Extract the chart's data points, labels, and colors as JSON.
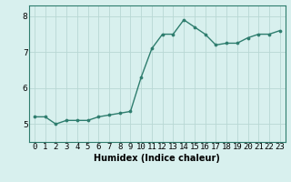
{
  "x": [
    0,
    1,
    2,
    3,
    4,
    5,
    6,
    7,
    8,
    9,
    10,
    11,
    12,
    13,
    14,
    15,
    16,
    17,
    18,
    19,
    20,
    21,
    22,
    23
  ],
  "y": [
    5.2,
    5.2,
    5.0,
    5.1,
    5.1,
    5.1,
    5.2,
    5.25,
    5.3,
    5.35,
    6.3,
    7.1,
    7.5,
    7.5,
    7.9,
    7.7,
    7.5,
    7.2,
    7.25,
    7.25,
    7.4,
    7.5,
    7.5,
    7.6
  ],
  "line_color": "#2e7d6e",
  "marker": "o",
  "marker_size": 2.2,
  "line_width": 1.0,
  "bg_color": "#d8f0ee",
  "grid_color": "#b8d8d4",
  "xlabel": "Humidex (Indice chaleur)",
  "ylim": [
    4.5,
    8.3
  ],
  "yticks": [
    5,
    6,
    7,
    8
  ],
  "xtick_labels": [
    "0",
    "1",
    "2",
    "3",
    "4",
    "5",
    "6",
    "7",
    "8",
    "9",
    "10",
    "11",
    "12",
    "13",
    "14",
    "15",
    "16",
    "17",
    "18",
    "19",
    "20",
    "21",
    "22",
    "23"
  ],
  "xlabel_fontsize": 7,
  "tick_fontsize": 6.5
}
